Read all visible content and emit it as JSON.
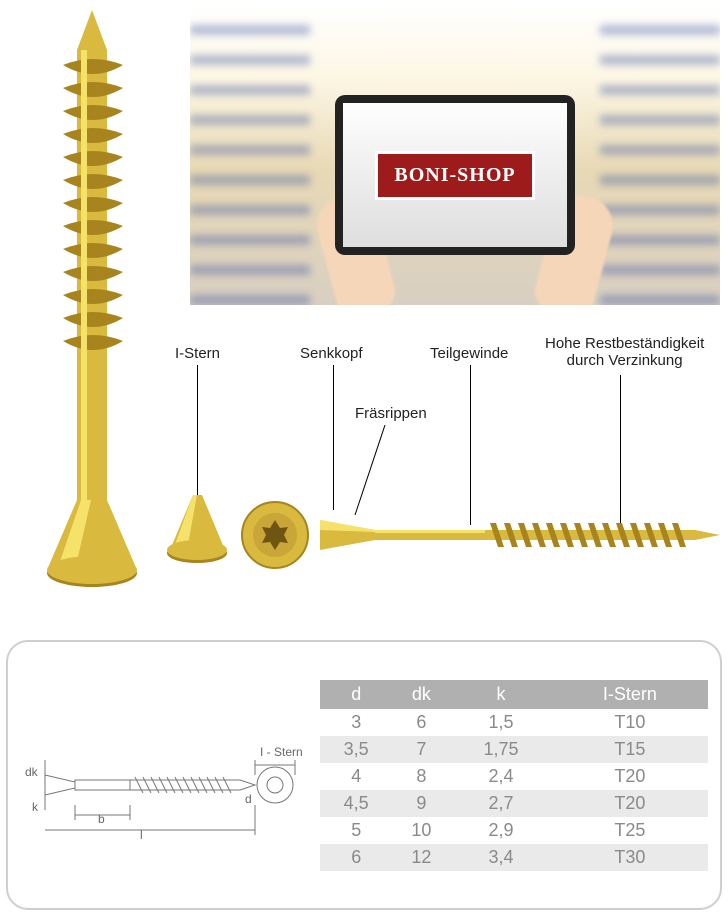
{
  "hero": {
    "brand": "BONI-SHOP"
  },
  "callouts": {
    "istern": "I-Stern",
    "senkkopf": "Senkkopf",
    "teilgew": "Teilgewinde",
    "rest": "Hohe Restbeständigkeit\ndurch Verzinkung",
    "fraser": "Fräsrippen"
  },
  "drawing_labels": {
    "dk": "dk",
    "k": "k",
    "b": "b",
    "l": "l",
    "d": "d",
    "istern": "I - Stern"
  },
  "table": {
    "columns": [
      "d",
      "dk",
      "k",
      "I-Stern"
    ],
    "rows": [
      [
        "3",
        "6",
        "1,5",
        "T10"
      ],
      [
        "3,5",
        "7",
        "1,75",
        "T15"
      ],
      [
        "4",
        "8",
        "2,4",
        "T20"
      ],
      [
        "4,5",
        "9",
        "2,7",
        "T20"
      ],
      [
        "5",
        "10",
        "2,9",
        "T25"
      ],
      [
        "6",
        "12",
        "3,4",
        "T30"
      ]
    ],
    "header_bg": "#b0b0b0",
    "header_fg": "#ffffff",
    "row_alt_bg": "#eaeaea",
    "text_color": "#8a8a8a",
    "fontsize": 18
  },
  "colors": {
    "gold_light": "#f4e26a",
    "gold_mid": "#d9b93e",
    "gold_dark": "#a8841f",
    "card_border": "#cfcfcf"
  }
}
